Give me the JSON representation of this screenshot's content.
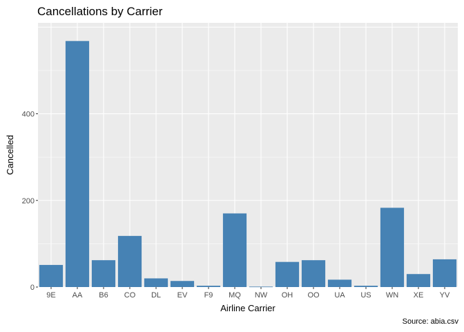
{
  "chart_data": {
    "type": "bar",
    "title": "Cancellations by Carrier",
    "caption": "Source: abia.csv",
    "xlabel": "Airline Carrier",
    "ylabel": "Cancelled",
    "categories": [
      "9E",
      "AA",
      "B6",
      "CO",
      "DL",
      "EV",
      "F9",
      "MQ",
      "NW",
      "OH",
      "OO",
      "UA",
      "US",
      "WN",
      "XE",
      "YV"
    ],
    "values": [
      51,
      568,
      62,
      118,
      20,
      14,
      3,
      170,
      1,
      58,
      62,
      17,
      3,
      183,
      30,
      64
    ],
    "yticks": [
      0,
      200,
      400
    ],
    "ylim": [
      0,
      610
    ],
    "grid": true,
    "colors": {
      "bar": "#4682B4",
      "panel": "#EBEBEB",
      "grid": "#FFFFFF"
    }
  }
}
